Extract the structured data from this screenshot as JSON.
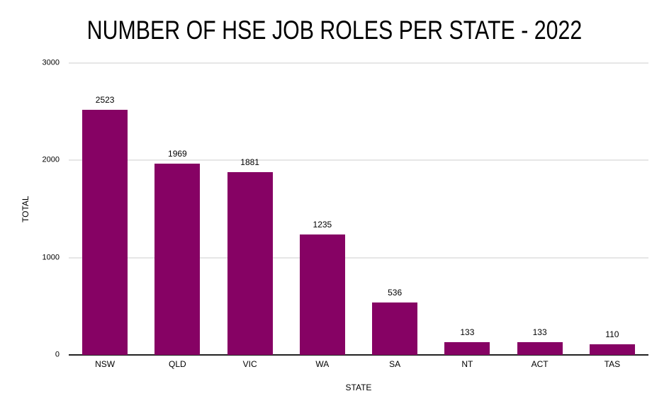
{
  "chart_data": {
    "type": "bar",
    "title": "NUMBER OF HSE JOB ROLES PER STATE - 2022",
    "xlabel": "STATE",
    "ylabel": "TOTAL",
    "categories": [
      "NSW",
      "QLD",
      "VIC",
      "WA",
      "SA",
      "NT",
      "ACT",
      "TAS"
    ],
    "values": [
      2523,
      1969,
      1881,
      1235,
      536,
      133,
      133,
      110
    ],
    "ylim": [
      0,
      3000
    ],
    "yticks": [
      0,
      1000,
      2000,
      3000
    ],
    "grid": true,
    "legend_position": "none",
    "bar_color": "#860264",
    "gridline_color": "#cccccc",
    "axis_line_color": "#212121",
    "text_color": "#000000",
    "background_color": "#ffffff"
  }
}
